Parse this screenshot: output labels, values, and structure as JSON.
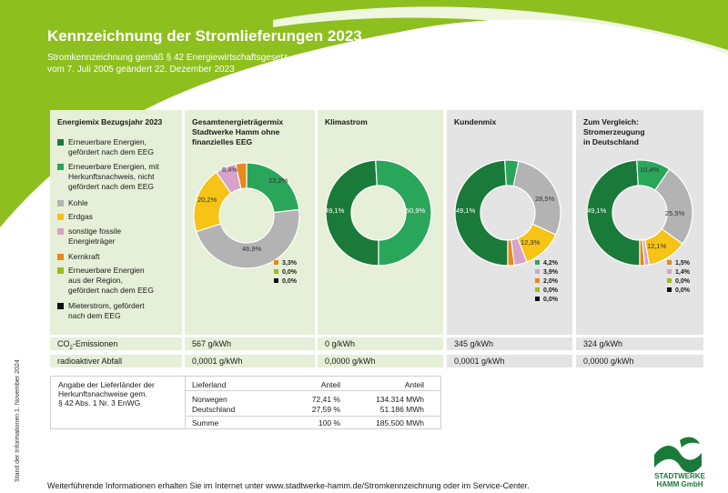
{
  "header": {
    "title": "Kennzeichnung der Stromlieferungen 2023",
    "subtitle_line1": "Stromkennzeichnung gemäß § 42 Energiewirtschaftsgesetz",
    "subtitle_line2": "vom 7. Juli 2005 geändert 22. Dezember 2023"
  },
  "colors": {
    "brand_green": "#8dbf1f",
    "dark_green": "#1a7a3a",
    "green": "#2aa65a",
    "grey": "#b3b3b3",
    "yellow": "#f6c316",
    "pink": "#d6a3c9",
    "orange": "#e8891a",
    "olive": "#9dbb1e",
    "black": "#111111"
  },
  "legend": {
    "title": "Energiemix Bezugsjahr 2023",
    "items": [
      {
        "label_lines": [
          "Erneuerbare Energien,",
          "gefördert nach dem EEG"
        ],
        "color": "#1a7a3a"
      },
      {
        "label_lines": [
          "Erneuerbare Energien, mit",
          "Herkunftsnachweis, nicht",
          "gefördert nach dem EEG"
        ],
        "color": "#2aa65a"
      },
      {
        "label_lines": [
          "Kohle"
        ],
        "color": "#b3b3b3"
      },
      {
        "label_lines": [
          "Erdgas"
        ],
        "color": "#f6c316"
      },
      {
        "label_lines": [
          "sonstige fossile",
          "Energieträger"
        ],
        "color": "#d6a3c9"
      },
      {
        "label_lines": [
          "Kernkraft"
        ],
        "color": "#e8891a"
      },
      {
        "label_lines": [
          "Erneuerbare Energien",
          "aus der Region,",
          "gefördert nach dem EEG"
        ],
        "color": "#9dbb1e"
      },
      {
        "label_lines": [
          "Mieterstrom, gefördert",
          "nach dem EEG"
        ],
        "color": "#111111"
      }
    ]
  },
  "chart_data": [
    {
      "type": "pie",
      "title": "Gesamtenergieträgermix Stadtwerke Hamm ohne finanzielles EEG",
      "categories": [
        "Erneuerbare Energien, gefördert nach dem EEG",
        "Erneuerbare Energien, mit Herkunftsnachweis, nicht gefördert nach dem EEG",
        "Kohle",
        "Erdgas",
        "sonstige fossile Energieträger",
        "Kernkraft",
        "Erneuerbare Energien aus der Region, gefördert nach dem EEG",
        "Mieterstrom, gefördert nach dem EEG"
      ],
      "values": [
        0,
        23.2,
        46.9,
        20.2,
        6.4,
        3.3,
        0.0,
        0.0
      ],
      "labels": [
        "",
        "23,2%",
        "46,9%",
        "20,2%",
        "6,4%",
        "3,3%",
        "0,0%",
        "0,0%"
      ]
    },
    {
      "type": "pie",
      "title": "Klimastrom",
      "categories": [
        "Erneuerbare Energien, gefördert nach dem EEG",
        "Erneuerbare Energien, mit Herkunftsnachweis, nicht gefördert nach dem EEG"
      ],
      "values": [
        49.1,
        50.9
      ],
      "labels": [
        "49,1%",
        "50,9%"
      ]
    },
    {
      "type": "pie",
      "title": "Kundenmix",
      "categories": [
        "Erneuerbare Energien, gefördert nach dem EEG",
        "Erneuerbare Energien, mit Herkunftsnachweis, nicht gefördert nach dem EEG",
        "Kohle",
        "Erdgas",
        "sonstige fossile Energieträger",
        "Kernkraft",
        "Erneuerbare Energien aus der Region, gefördert nach dem EEG",
        "Mieterstrom, gefördert nach dem EEG"
      ],
      "values": [
        49.1,
        4.2,
        28.5,
        12.3,
        3.9,
        2.0,
        0.0,
        0.0
      ],
      "labels": [
        "49,1%",
        "4,2%",
        "28,5%",
        "12,3%",
        "3,9%",
        "2,0%",
        "0,0%",
        "0,0%"
      ]
    },
    {
      "type": "pie",
      "title": "Zum Vergleich: Stromerzeugung in Deutschland",
      "categories": [
        "Erneuerbare Energien, gefördert nach dem EEG",
        "Erneuerbare Energien, mit Herkunftsnachweis, nicht gefördert nach dem EEG",
        "Kohle",
        "Erdgas",
        "sonstige fossile Energieträger",
        "Kernkraft",
        "Erneuerbare Energien aus der Region, gefördert nach dem EEG",
        "Mieterstrom, gefördert nach dem EEG"
      ],
      "values": [
        49.1,
        10.4,
        25.5,
        12.1,
        1.4,
        1.5,
        0.0,
        0.0
      ],
      "labels": [
        "49,1%",
        "10,4%",
        "25,5%",
        "12,1%",
        "1,4%",
        "1,5%",
        "0,0%",
        "0,0%"
      ]
    }
  ],
  "columns": {
    "c1_title_lines": [
      "Gesamtenergieträgermix",
      "Stadtwerke Hamm ohne",
      "finanzielles EEG"
    ],
    "c2_title_lines": [
      "Klimastrom"
    ],
    "c3_title_lines": [
      "Kundenmix"
    ],
    "c4_title_lines": [
      "Zum Vergleich:",
      "Stromerzeugung",
      "in Deutschland"
    ]
  },
  "emissions": {
    "co2_label_prefix": "CO",
    "co2_label_sub": "2",
    "co2_label_suffix": "-Emissionen",
    "co2_values": [
      "567 g/kWh",
      "0 g/kWh",
      "345 g/kWh",
      "324 g/kWh"
    ],
    "waste_label": "radioaktiver Abfall",
    "waste_values": [
      "0,0001 g/kWh",
      "0,0000 g/kWh",
      "0,0001 g/kWh",
      "0,0000 g/kWh"
    ]
  },
  "origin_table": {
    "caption_lines": [
      "Angabe der Lieferländer der",
      "Herkunftsnachweise gem.",
      "§ 42 Abs. 1 Nr. 3 EnWG"
    ],
    "headers": [
      "Lieferland",
      "Anteil",
      "Anteil"
    ],
    "rows": [
      [
        "Norwegen",
        "72,41 %",
        "134.314 MWh"
      ],
      [
        "Deutschland",
        "27,59 %",
        "51.186 MWh"
      ]
    ],
    "sum": [
      "Summe",
      "100 %",
      "185.500 MWh"
    ]
  },
  "footer": {
    "text": "Weiterführende Informationen erhalten Sie im Internet unter www.stadtwerke-hamm.de/Stromkennzeichnung oder im Service-Center.",
    "side": "Stand der Informationen 1. November 2024"
  },
  "logo": {
    "line1": "STADTWERKE",
    "line2": "HAMM GmbH"
  }
}
